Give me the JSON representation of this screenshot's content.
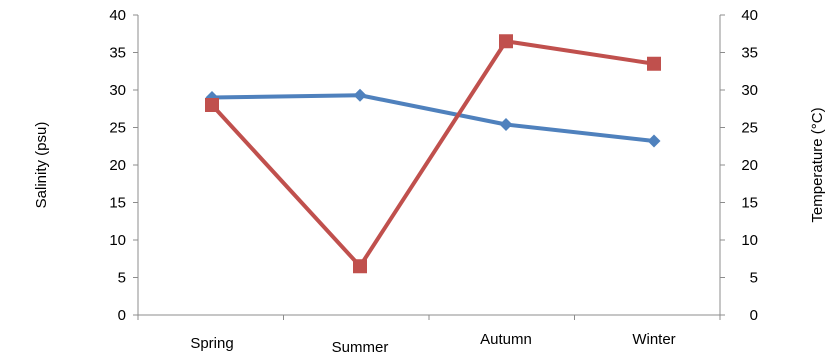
{
  "chart_data": {
    "type": "line",
    "categories": [
      "Spring",
      "Summer",
      "Autumn",
      "Winter"
    ],
    "series": [
      {
        "axis": "left",
        "color": "#4f81bd",
        "marker": "diamond",
        "values": [
          29.0,
          29.3,
          25.4,
          23.2
        ]
      },
      {
        "axis": "right",
        "color": "#c0504d",
        "marker": "square",
        "values": [
          28.0,
          6.5,
          36.5,
          33.5
        ]
      }
    ],
    "ylabel": "Salinity (psu)",
    "y2label": "Temperature (°C)",
    "ylim": [
      0,
      40
    ],
    "y2lim": [
      0,
      40
    ],
    "yticks": [
      0,
      5,
      10,
      15,
      20,
      25,
      30,
      35,
      40
    ],
    "y2ticks": [
      0,
      5,
      10,
      15,
      20,
      25,
      30,
      35,
      40
    ],
    "grid": false,
    "legend": "none"
  }
}
